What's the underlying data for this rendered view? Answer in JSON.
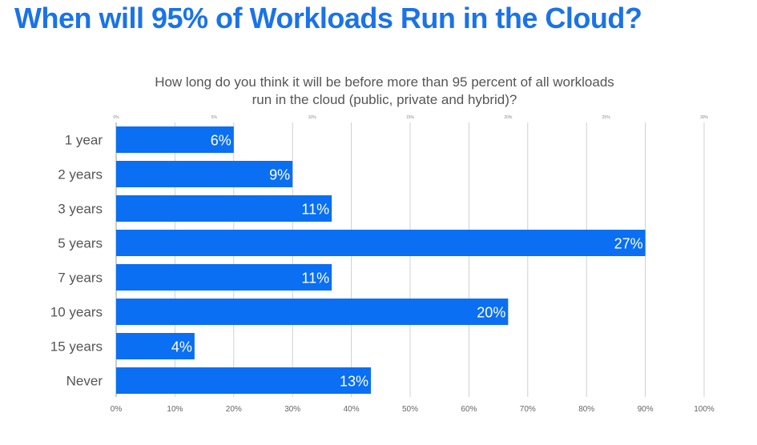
{
  "headline": "When will 95% of Workloads Run in the Cloud?",
  "chart_data": {
    "type": "bar",
    "orientation": "horizontal",
    "title": "How long do you think it will be before more than 95 percent of all workloads run in the cloud (public, private and hybrid)?",
    "title_lines": [
      "How long do you think it will be before more than 95 percent of all workloads",
      "run in the cloud (public, private and hybrid)?"
    ],
    "categories": [
      "1 year",
      "2 years",
      "3 years",
      "5 years",
      "7 years",
      "10 years",
      "15 years",
      "Never"
    ],
    "values": [
      6,
      9,
      11,
      27,
      11,
      20,
      4,
      13
    ],
    "value_labels": [
      "6%",
      "9%",
      "11%",
      "27%",
      "11%",
      "20%",
      "4%",
      "13%"
    ],
    "top_axis": {
      "range": [
        0,
        30
      ],
      "ticks": [
        "0%",
        "5%",
        "10%",
        "15%",
        "20%",
        "25%",
        "30%"
      ]
    },
    "bottom_axis": {
      "range": [
        0,
        100
      ],
      "ticks": [
        "0%",
        "10%",
        "20%",
        "30%",
        "40%",
        "50%",
        "60%",
        "70%",
        "80%",
        "90%",
        "100%"
      ]
    },
    "grid": true,
    "bar_color": "#0a6ff2",
    "title_color": "#1a73e8"
  }
}
